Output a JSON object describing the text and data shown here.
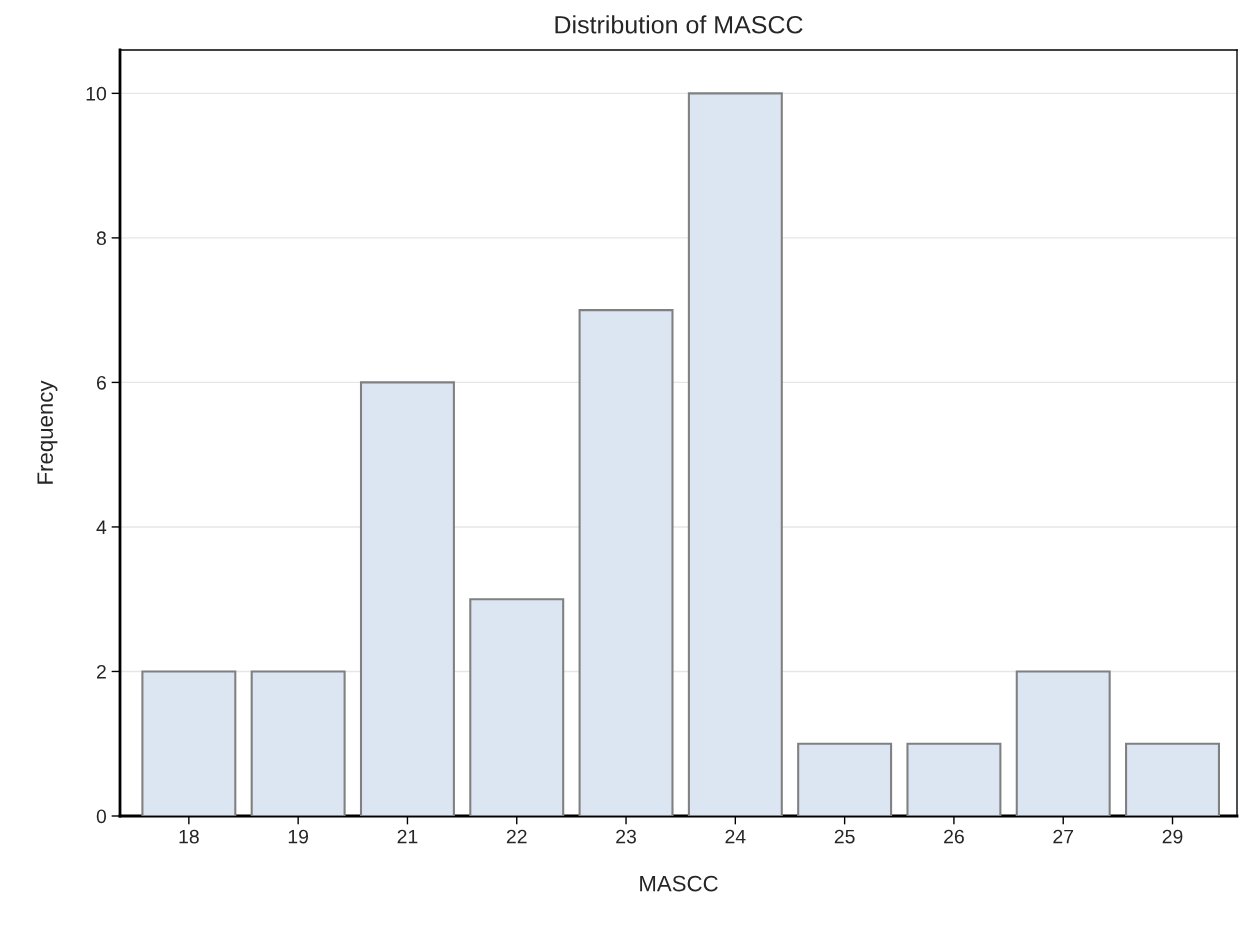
{
  "chart_data": {
    "type": "bar",
    "title": "Distribution of MASCC",
    "xlabel": "MASCC",
    "ylabel": "Frequency",
    "categories": [
      "18",
      "19",
      "21",
      "22",
      "23",
      "24",
      "25",
      "26",
      "27",
      "29"
    ],
    "values": [
      2,
      2,
      6,
      3,
      7,
      10,
      1,
      1,
      2,
      1
    ],
    "color": "#dce6f2",
    "ylim": [
      0,
      10.6
    ],
    "yticks": [
      0,
      2,
      4,
      6,
      8,
      10
    ],
    "grid": "y",
    "legend": false
  }
}
